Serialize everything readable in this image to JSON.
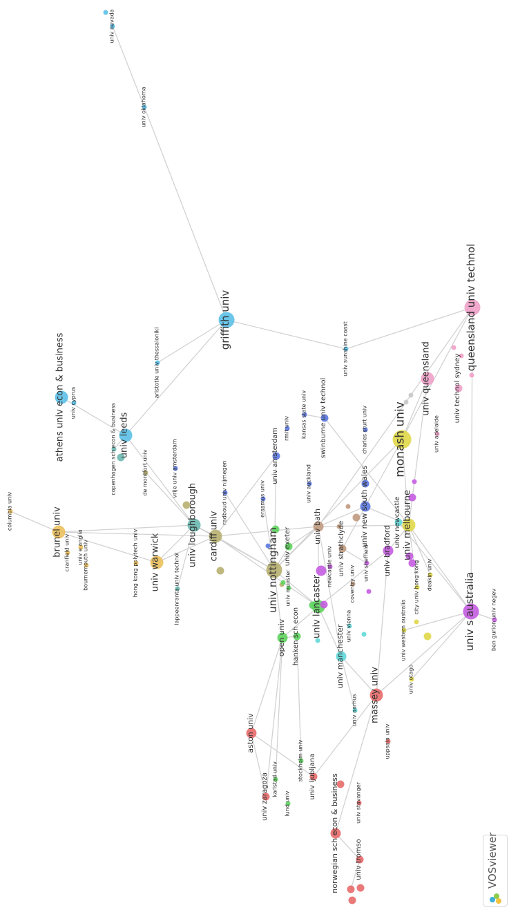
{
  "app": {
    "name": "VOSviewer"
  },
  "cluster_colors": {
    "blue_light": "#5bc0e8",
    "red": "#e86a6a",
    "green": "#5ed45e",
    "darkblue": "#5b78e0",
    "yellow": "#e0d848",
    "purple": "#c45ce0",
    "cyan": "#62d8d8",
    "orange": "#ecc05c",
    "brown": "#c09a80",
    "pink": "#f0a0c8",
    "olive": "#b8b070",
    "teal": "#6ab8b0",
    "gray": "#c8c8c8",
    "edge": "#d2d2d2"
  },
  "nodes": [
    {
      "id": "univ nevada",
      "label": "univ nevada",
      "c": "blue_light",
      "w": 1,
      "dir": "r"
    },
    {
      "id": "nev2",
      "label": "",
      "c": "blue_light",
      "w": 1,
      "dir": "r"
    },
    {
      "id": "univ oklahoma",
      "label": "univ oklahoma",
      "c": "blue_light",
      "w": 1,
      "dir": "r"
    },
    {
      "id": "griffith univ",
      "label": "griffith univ",
      "c": "blue_light",
      "w": 5,
      "dir": "l"
    },
    {
      "id": "aristotle univ thessaloniki",
      "label": "aristotle univ thessaloniki",
      "c": "blue_light",
      "w": 1,
      "dir": "l"
    },
    {
      "id": "univ sunshine coast",
      "label": "univ sunshine coast",
      "c": "blue_light",
      "w": 1,
      "dir": "l"
    },
    {
      "id": "athens univ econ & business",
      "label": "athens univ econ & business",
      "c": "blue_light",
      "w": 4,
      "dir": "l"
    },
    {
      "id": "univ cyprus",
      "label": "univ cyprus",
      "c": "blue_light",
      "w": 1,
      "dir": "l"
    },
    {
      "id": "univ leeds",
      "label": "univ leeds",
      "c": "blue_light",
      "w": 4,
      "dir": "l"
    },
    {
      "id": "copenhagen sch econ & business",
      "label": "copenhagen sch econ & business",
      "c": "teal",
      "w": 1,
      "dir": "l"
    },
    {
      "id": "cph2",
      "label": "",
      "c": "teal",
      "w": 2,
      "dir": "l"
    },
    {
      "id": "queensland univ technol",
      "label": "queensland univ technol",
      "c": "pink",
      "w": 5,
      "dir": "l"
    },
    {
      "id": "univ queensland",
      "label": "univ queensland",
      "c": "pink",
      "w": 4,
      "dir": "l"
    },
    {
      "id": "univ technol sydney",
      "label": "univ technol sydney",
      "c": "pink",
      "w": 2,
      "dir": "l"
    },
    {
      "id": "univ adelaide",
      "label": "univ adelaide",
      "c": "pink",
      "w": 1,
      "dir": "l"
    },
    {
      "id": "pk1",
      "label": "",
      "c": "pink",
      "w": 1,
      "dir": "l"
    },
    {
      "id": "pk2",
      "label": "",
      "c": "pink",
      "w": 1,
      "dir": "l"
    },
    {
      "id": "pk3",
      "label": "",
      "c": "pink",
      "w": 1,
      "dir": "l"
    },
    {
      "id": "monash univ",
      "label": "monash univ",
      "c": "yellow",
      "w": 6,
      "dir": "l"
    },
    {
      "id": "gr1",
      "label": "",
      "c": "gray",
      "w": 1,
      "dir": "l"
    },
    {
      "id": "gr2",
      "label": "",
      "c": "gray",
      "w": 1,
      "dir": "l"
    },
    {
      "id": "kansas state univ",
      "label": "kansas state univ",
      "c": "darkblue",
      "w": 1,
      "dir": "l"
    },
    {
      "id": "swinburne univ technol",
      "label": "swinburne univ technol",
      "c": "darkblue",
      "w": 2,
      "dir": "l"
    },
    {
      "id": "rmit univ",
      "label": "rmit univ",
      "c": "darkblue",
      "w": 1,
      "dir": "l"
    },
    {
      "id": "charles sturt univ",
      "label": "charles sturt univ",
      "c": "darkblue",
      "w": 1,
      "dir": "l"
    },
    {
      "id": "univ amsterdam",
      "label": "univ amsterdam",
      "c": "darkblue",
      "w": 2,
      "dir": "l"
    },
    {
      "id": "univ auckland",
      "label": "univ auckland",
      "c": "darkblue",
      "w": 1,
      "dir": "l"
    },
    {
      "id": "univ new south wales",
      "label": "univ new south wales",
      "c": "darkblue",
      "w": 3,
      "dir": "l"
    },
    {
      "id": "db2",
      "label": "",
      "c": "darkblue",
      "w": 2,
      "dir": "l"
    },
    {
      "id": "vrije univ amsterdam",
      "label": "vrije univ amsterdam",
      "c": "darkblue",
      "w": 1,
      "dir": "l"
    },
    {
      "id": "radboud univ nijmegen",
      "label": "radboud univ nijmegen",
      "c": "darkblue",
      "w": 1,
      "dir": "l"
    },
    {
      "id": "erasmus univ",
      "label": "erasmus univ",
      "c": "darkblue",
      "w": 1,
      "dir": "l"
    },
    {
      "id": "db3",
      "label": "",
      "c": "darkblue",
      "w": 1,
      "dir": "l"
    },
    {
      "id": "de montfort univ",
      "label": "de montfort univ",
      "c": "olive",
      "w": 1,
      "dir": "l"
    },
    {
      "id": "univ loughborough",
      "label": "univ loughborough",
      "c": "teal",
      "w": 4,
      "dir": "l"
    },
    {
      "id": "ol2",
      "label": "",
      "c": "olive",
      "w": 2,
      "dir": "l"
    },
    {
      "id": "cardiff univ",
      "label": "cardiff univ",
      "c": "olive",
      "w": 4,
      "dir": "l"
    },
    {
      "id": "ol3",
      "label": "",
      "c": "olive",
      "w": 2,
      "dir": "l"
    },
    {
      "id": "univ nottingham",
      "label": "univ nottingham",
      "c": "olive",
      "w": 5,
      "dir": "l"
    },
    {
      "id": "ol4",
      "label": "",
      "c": "olive",
      "w": 1,
      "dir": "l"
    },
    {
      "id": "lappeenranta univ technol",
      "label": "lappeenranta univ technol",
      "c": "teal",
      "w": 1,
      "dir": "l"
    },
    {
      "id": "columbia univ",
      "label": "columbia univ",
      "c": "orange",
      "w": 1,
      "dir": "l"
    },
    {
      "id": "brunel univ",
      "label": "brunel univ",
      "c": "orange",
      "w": 4,
      "dir": "l"
    },
    {
      "id": "cranfield univ",
      "label": "cranfield univ",
      "c": "orange",
      "w": 1,
      "dir": "l"
    },
    {
      "id": "univ e anglia",
      "label": "univ e anglia",
      "c": "orange",
      "w": 1,
      "dir": "l"
    },
    {
      "id": "bournemouth univ",
      "label": "bournemouth univ",
      "c": "orange",
      "w": 1,
      "dir": "l"
    },
    {
      "id": "hong kong polytech univ",
      "label": "hong kong polytech univ",
      "c": "orange",
      "w": 1,
      "dir": "l"
    },
    {
      "id": "univ warwick",
      "label": "univ warwick",
      "c": "orange",
      "w": 4,
      "dir": "l"
    },
    {
      "id": "univ exeter",
      "label": "univ exeter",
      "c": "green",
      "w": 2,
      "dir": "l"
    },
    {
      "id": "gn1",
      "label": "",
      "c": "green",
      "w": 2,
      "dir": "l"
    },
    {
      "id": "univ munster",
      "label": "univ munster",
      "c": "green",
      "w": 1,
      "dir": "l"
    },
    {
      "id": "gn2",
      "label": "",
      "c": "green",
      "w": 1,
      "dir": "l"
    },
    {
      "id": "univ bath",
      "label": "univ bath",
      "c": "brown",
      "w": 3,
      "dir": "l"
    },
    {
      "id": "univ lancaster",
      "label": "univ lancaster",
      "c": "green",
      "w": 4,
      "dir": "l"
    },
    {
      "id": "gn3",
      "label": "",
      "c": "green",
      "w": 2,
      "dir": "l"
    },
    {
      "id": "univ strathclyde",
      "label": "univ strathclyde",
      "c": "brown",
      "w": 2,
      "dir": "l"
    },
    {
      "id": "br1",
      "label": "",
      "c": "brown",
      "w": 1,
      "dir": "l"
    },
    {
      "id": "br2",
      "label": "",
      "c": "brown",
      "w": 2,
      "dir": "l"
    },
    {
      "id": "br3",
      "label": "",
      "c": "brown",
      "w": 1,
      "dir": "l"
    },
    {
      "id": "coventry univ",
      "label": "coventry univ",
      "c": "brown",
      "w": 1,
      "dir": "l"
    },
    {
      "id": "univ sheffield",
      "label": "univ sheffield",
      "c": "purple",
      "w": 1,
      "dir": "l"
    },
    {
      "id": "pu1",
      "label": "",
      "c": "purple",
      "w": 3,
      "dir": "l"
    },
    {
      "id": "newcastle univ",
      "label": "newcastle univ",
      "c": "purple",
      "w": 1,
      "dir": "l"
    },
    {
      "id": "pu2",
      "label": "",
      "c": "purple",
      "w": 2,
      "dir": "l"
    },
    {
      "id": "pu3",
      "label": "",
      "c": "purple",
      "w": 1,
      "dir": "l"
    },
    {
      "id": "pu4",
      "label": "",
      "c": "purple",
      "w": 2,
      "dir": "l"
    },
    {
      "id": "univ bradford",
      "label": "univ bradford",
      "c": "purple",
      "w": 3,
      "dir": "l"
    },
    {
      "id": "univ newcastle",
      "label": "univ newcastle",
      "c": "cyan",
      "w": 2,
      "dir": "l"
    },
    {
      "id": "univ melbourne",
      "label": "univ melbourne",
      "c": "yellow",
      "w": 4,
      "dir": "l"
    },
    {
      "id": "pu5",
      "label": "",
      "c": "purple",
      "w": 1,
      "dir": "l"
    },
    {
      "id": "pu6",
      "label": "",
      "c": "purple",
      "w": 2,
      "dir": "l"
    },
    {
      "id": "pu7",
      "label": "",
      "c": "purple",
      "w": 2,
      "dir": "l"
    },
    {
      "id": "deakin univ",
      "label": "deakin univ",
      "c": "yellow",
      "w": 1,
      "dir": "l"
    },
    {
      "id": "city univ hong kong",
      "label": "city univ hong kong",
      "c": "yellow",
      "w": 1,
      "dir": "l"
    },
    {
      "id": "ye1",
      "label": "",
      "c": "yellow",
      "w": 1,
      "dir": "l"
    },
    {
      "id": "ye2",
      "label": "",
      "c": "yellow",
      "w": 2,
      "dir": "l"
    },
    {
      "id": "univ s australia",
      "label": "univ s australia",
      "c": "purple",
      "w": 5,
      "dir": "l"
    },
    {
      "id": "ben gurion univ negev",
      "label": "ben gurion univ negev",
      "c": "purple",
      "w": 1,
      "dir": "l"
    },
    {
      "id": "univ western australia",
      "label": "univ western australia",
      "c": "yellow",
      "w": 1,
      "dir": "l"
    },
    {
      "id": "univ otago",
      "label": "univ otago",
      "c": "yellow",
      "w": 1,
      "dir": "l"
    },
    {
      "id": "open univ",
      "label": "open univ",
      "c": "green",
      "w": 3,
      "dir": "l"
    },
    {
      "id": "hanken sch econ",
      "label": "hanken sch econ",
      "c": "green",
      "w": 2,
      "dir": "l"
    },
    {
      "id": "cy1",
      "label": "",
      "c": "cyan",
      "w": 1,
      "dir": "l"
    },
    {
      "id": "univ vienna",
      "label": "univ vienna",
      "c": "cyan",
      "w": 1,
      "dir": "l"
    },
    {
      "id": "cy2",
      "label": "",
      "c": "cyan",
      "w": 1,
      "dir": "l"
    },
    {
      "id": "univ manchester",
      "label": "univ manchester",
      "c": "cyan",
      "w": 3,
      "dir": "l"
    },
    {
      "id": "univ aarhus",
      "label": "univ aarhus",
      "c": "cyan",
      "w": 1,
      "dir": "l"
    },
    {
      "id": "massey univ",
      "label": "massey univ",
      "c": "red",
      "w": 4,
      "dir": "l"
    },
    {
      "id": "uppsala univ",
      "label": "uppsala univ",
      "c": "red",
      "w": 1,
      "dir": "l"
    },
    {
      "id": "aston univ",
      "label": "aston univ",
      "c": "red",
      "w": 3,
      "dir": "l"
    },
    {
      "id": "karlstad univ",
      "label": "karlstad univ",
      "c": "green",
      "w": 1,
      "dir": "l"
    },
    {
      "id": "stockholm univ",
      "label": "stockholm univ",
      "c": "green",
      "w": 1,
      "dir": "l"
    },
    {
      "id": "univ zaragoza",
      "label": "univ zaragoza",
      "c": "red",
      "w": 2,
      "dir": "l"
    },
    {
      "id": "lund univ",
      "label": "lund univ",
      "c": "green",
      "w": 1,
      "dir": "l"
    },
    {
      "id": "univ ljubljana",
      "label": "univ ljubljana",
      "c": "red",
      "w": 2,
      "dir": "l"
    },
    {
      "id": "rd1",
      "label": "",
      "c": "red",
      "w": 2,
      "dir": "l"
    },
    {
      "id": "univ stavanger",
      "label": "univ stavanger",
      "c": "red",
      "w": 1,
      "dir": "l"
    },
    {
      "id": "norwegian sch econ & business",
      "label": "norwegian sch econ & business",
      "c": "red",
      "w": 3,
      "dir": "l"
    },
    {
      "id": "univ tromso",
      "label": "univ tromso",
      "c": "red",
      "w": 2,
      "dir": "l"
    },
    {
      "id": "rd2",
      "label": "",
      "c": "red",
      "w": 2,
      "dir": "l"
    },
    {
      "id": "rd3",
      "label": "",
      "c": "red",
      "w": 2,
      "dir": "l"
    },
    {
      "id": "rd4",
      "label": "",
      "c": "red",
      "w": 2,
      "dir": "l"
    }
  ],
  "edges": [
    [
      "univ nevada",
      "univ oklahoma"
    ],
    [
      "univ oklahoma",
      "griffith univ"
    ],
    [
      "griffith univ",
      "univ leeds"
    ],
    [
      "griffith univ",
      "univ sunshine coast"
    ],
    [
      "univ sunshine coast",
      "queensland univ technol"
    ],
    [
      "griffith univ",
      "aristotle univ thessaloniki"
    ],
    [
      "athens univ econ & business",
      "univ leeds"
    ],
    [
      "univ leeds",
      "copenhagen sch econ & business"
    ],
    [
      "univ leeds",
      "univ loughborough"
    ],
    [
      "queensland univ technol",
      "univ bath"
    ],
    [
      "queensland univ technol",
      "monash univ"
    ],
    [
      "queensland univ technol",
      "univ s australia"
    ],
    [
      "univ queensland",
      "monash univ"
    ],
    [
      "univ queensland",
      "univ melbourne"
    ],
    [
      "monash univ",
      "univ new south wales"
    ],
    [
      "monash univ",
      "univ melbourne"
    ],
    [
      "monash univ",
      "univ nottingham"
    ],
    [
      "kansas state univ",
      "swinburne univ technol"
    ],
    [
      "swinburne univ technol",
      "univ melbourne"
    ],
    [
      "univ amsterdam",
      "cardiff univ"
    ],
    [
      "radboud univ nijmegen",
      "univ nottingham"
    ],
    [
      "univ loughborough",
      "cardiff univ"
    ],
    [
      "univ loughborough",
      "univ nottingham"
    ],
    [
      "univ loughborough",
      "brunel univ"
    ],
    [
      "univ loughborough",
      "univ warwick"
    ],
    [
      "univ loughborough",
      "lappeenranta univ technol"
    ],
    [
      "columbia univ",
      "brunel univ"
    ],
    [
      "brunel univ",
      "cardiff univ"
    ],
    [
      "brunel univ",
      "univ warwick"
    ],
    [
      "univ warwick",
      "cardiff univ"
    ],
    [
      "cardiff univ",
      "univ bath"
    ],
    [
      "cardiff univ",
      "univ nottingham"
    ],
    [
      "cardiff univ",
      "univ lancaster"
    ],
    [
      "univ nottingham",
      "univ bath"
    ],
    [
      "univ nottingham",
      "univ lancaster"
    ],
    [
      "univ nottingham",
      "open univ"
    ],
    [
      "univ bath",
      "univ lancaster"
    ],
    [
      "univ bath",
      "univ new south wales"
    ],
    [
      "univ bath",
      "univ melbourne"
    ],
    [
      "univ bath",
      "univ manchester"
    ],
    [
      "univ lancaster",
      "univ bradford"
    ],
    [
      "univ lancaster",
      "open univ"
    ],
    [
      "univ lancaster",
      "univ manchester"
    ],
    [
      "univ melbourne",
      "univ s australia"
    ],
    [
      "univ melbourne",
      "deakin univ"
    ],
    [
      "univ newcastle",
      "univ s australia"
    ],
    [
      "univ s australia",
      "ben gurion univ negev"
    ],
    [
      "univ s australia",
      "massey univ"
    ],
    [
      "univ bradford",
      "univ melbourne"
    ],
    [
      "univ bradford",
      "massey univ"
    ],
    [
      "open univ",
      "aston univ"
    ],
    [
      "open univ",
      "univ zaragoza"
    ],
    [
      "open univ",
      "hanken sch econ"
    ],
    [
      "hanken sch econ",
      "stockholm univ"
    ],
    [
      "aston univ",
      "univ zaragoza"
    ],
    [
      "aston univ",
      "univ ljubljana"
    ],
    [
      "massey univ",
      "univ ljubljana"
    ],
    [
      "massey univ",
      "norwegian sch econ & business"
    ],
    [
      "massey univ",
      "univ manchester"
    ],
    [
      "norwegian sch econ & business",
      "univ tromso"
    ],
    [
      "univ tromso",
      "rd2"
    ],
    [
      "univ new south wales",
      "univ melbourne"
    ],
    [
      "univ new south wales",
      "univ strathclyde"
    ],
    [
      "univ strathclyde",
      "univ sheffield"
    ],
    [
      "univ manchester",
      "univ aarhus"
    ],
    [
      "univ western australia",
      "univ s australia"
    ],
    [
      "city univ hong kong",
      "univ melbourne"
    ],
    [
      "univ exeter",
      "univ nottingham"
    ],
    [
      "univ exeter",
      "univ bath"
    ],
    [
      "karlstad univ",
      "open univ"
    ],
    [
      "univ otago",
      "univ s australia"
    ],
    [
      "univ amsterdam",
      "univ nottingham"
    ],
    [
      "erasmus univ",
      "univ nottingham"
    ],
    [
      "univ loughborough",
      "de montfort univ"
    ]
  ]
}
